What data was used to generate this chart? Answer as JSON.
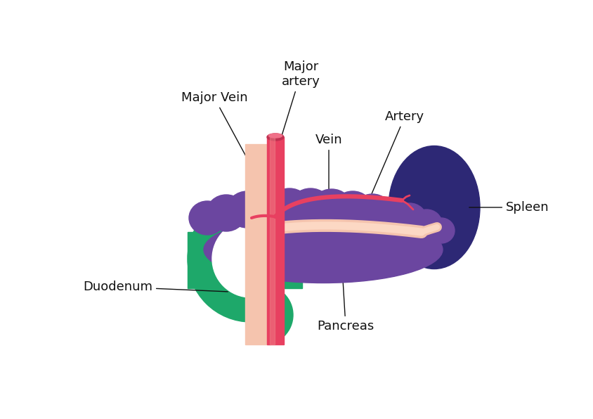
{
  "bg_color": "#ffffff",
  "colors": {
    "pancreas": "#6B46A0",
    "spleen": "#2D2875",
    "duodenum": "#1EA86A",
    "major_vein": "#F5C4AE",
    "major_artery": "#E84060",
    "splenic_artery": "#E84060",
    "splenic_vein": "#F5C4AE",
    "label_line": "#1a1a1a"
  },
  "labels": {
    "major_vein": "Major Vein",
    "major_artery": "Major\nartery",
    "vein": "Vein",
    "artery": "Artery",
    "spleen": "Spleen",
    "pancreas": "Pancreas",
    "duodenum": "Duodenum"
  },
  "figsize": [
    8.45,
    5.96
  ],
  "dpi": 100
}
